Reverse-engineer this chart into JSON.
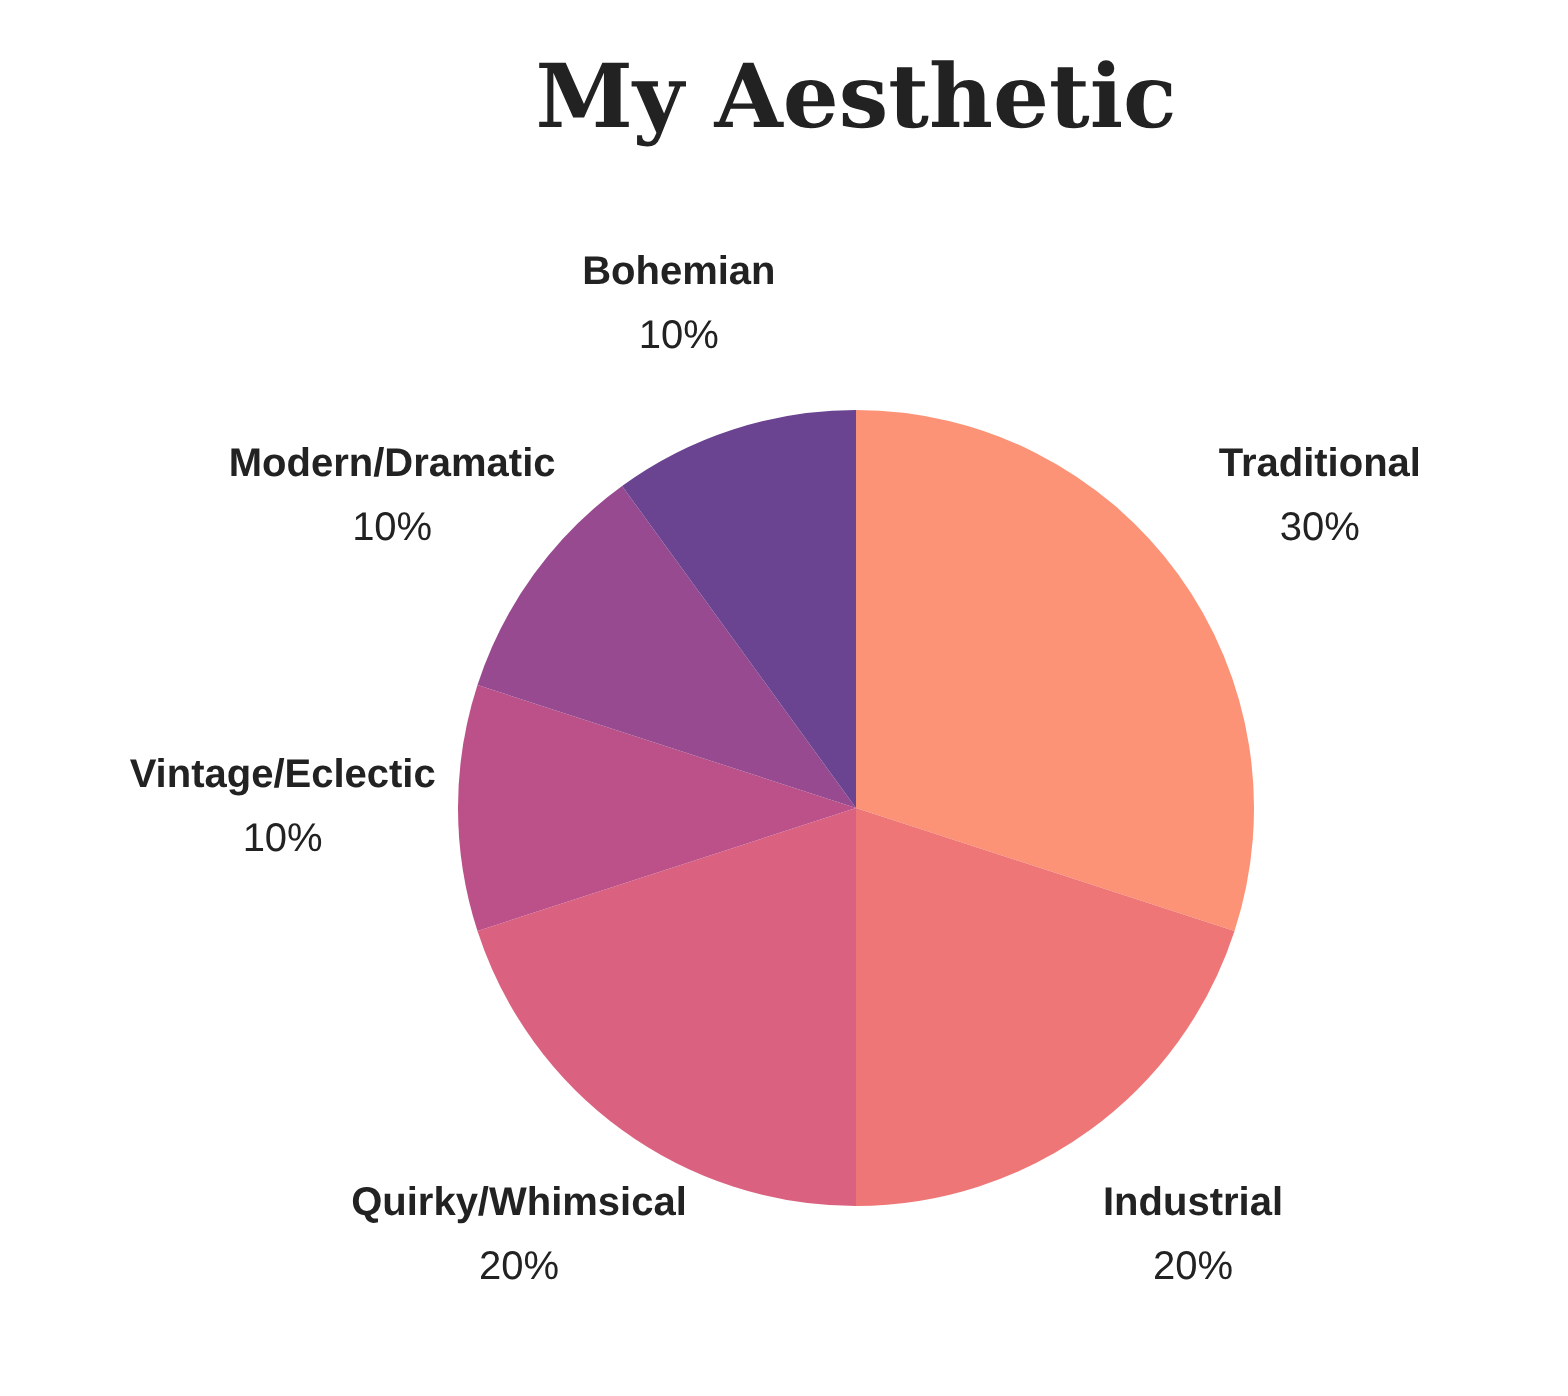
{
  "chart_data": {
    "type": "pie",
    "title": "My Aesthetic",
    "categories": [
      "Traditional",
      "Industrial",
      "Quirky/Whimsical",
      "Vintage/Eclectic",
      "Modern/Dramatic",
      "Bohemian"
    ],
    "values": [
      30,
      20,
      20,
      10,
      10,
      10
    ],
    "value_labels": [
      "30%",
      "20%",
      "20%",
      "10%",
      "10%",
      "10%"
    ],
    "colors": [
      "#fc9276",
      "#ef7676",
      "#da6180",
      "#bc5088",
      "#974a8f",
      "#6a4391"
    ],
    "legend": false
  }
}
